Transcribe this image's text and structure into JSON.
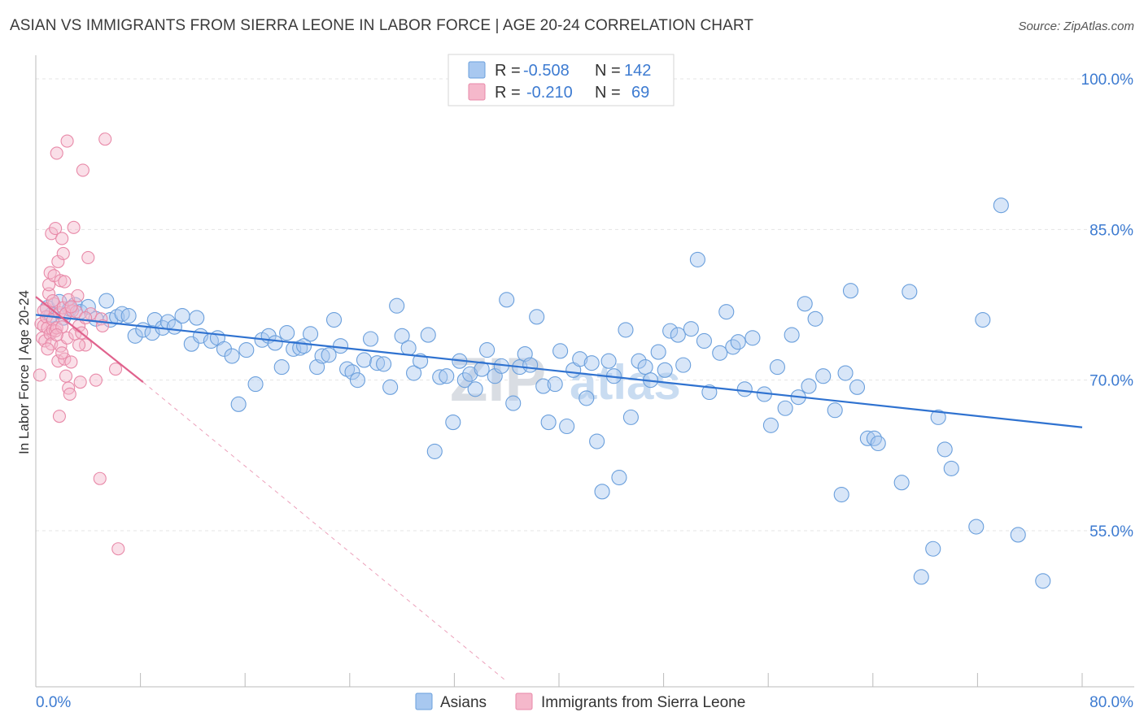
{
  "title": "ASIAN VS IMMIGRANTS FROM SIERRA LEONE IN LABOR FORCE | AGE 20-24 CORRELATION CHART",
  "source": "Source: ZipAtlas.com",
  "watermark": {
    "zip": "ZIP",
    "atlas": "atlas"
  },
  "legend_box": {
    "rows": [
      {
        "r_label": "R =",
        "r_value": "-0.508",
        "n_label": "N =",
        "n_value": "142",
        "color": "#a8c8f0"
      },
      {
        "r_label": "R =",
        "r_value": "-0.210",
        "n_label": "N =",
        "n_value": "69",
        "color": "#f5b8cb"
      }
    ]
  },
  "bottom_legend": [
    {
      "label": "Asians",
      "color": "#a8c8f0"
    },
    {
      "label": "Immigrants from Sierra Leone",
      "color": "#f5b8cb"
    }
  ],
  "chart_data": {
    "type": "scatter",
    "ylabel": "In Labor Force | Age 20-24",
    "xlabel": "",
    "xlim": [
      0,
      84
    ],
    "ylim": [
      40,
      102
    ],
    "x_tick_labels": [
      {
        "value": 0,
        "label": "0.0%"
      },
      {
        "value": 80,
        "label": "80.0%"
      }
    ],
    "y_tick_labels": [
      {
        "value": 100,
        "label": "100.0%"
      },
      {
        "value": 85,
        "label": "85.0%"
      },
      {
        "value": 70,
        "label": "70.0%"
      },
      {
        "value": 55,
        "label": "55.0%"
      }
    ],
    "grid": true,
    "series": [
      {
        "name": "Asians",
        "color": "#a8c8f0",
        "stroke": "#6a9fdc",
        "trend": {
          "x": [
            0,
            80
          ],
          "y": [
            76.5,
            65.3
          ],
          "color": "#2f72d0"
        },
        "points": [
          [
            0.9,
            77.2
          ],
          [
            1.2,
            76.5
          ],
          [
            1.8,
            77.8
          ],
          [
            2.1,
            76.2
          ],
          [
            2.6,
            77.1
          ],
          [
            3.0,
            77.5
          ],
          [
            3.4,
            76.8
          ],
          [
            4.0,
            77.3
          ],
          [
            4.6,
            76.1
          ],
          [
            5.4,
            77.9
          ],
          [
            5.7,
            76.0
          ],
          [
            6.2,
            76.3
          ],
          [
            6.6,
            76.6
          ],
          [
            7.1,
            76.4
          ],
          [
            7.6,
            74.4
          ],
          [
            8.2,
            75.0
          ],
          [
            8.9,
            74.7
          ],
          [
            9.1,
            76.0
          ],
          [
            9.7,
            75.2
          ],
          [
            10.1,
            75.8
          ],
          [
            10.6,
            75.3
          ],
          [
            11.2,
            76.4
          ],
          [
            11.9,
            73.6
          ],
          [
            12.3,
            76.2
          ],
          [
            12.6,
            74.4
          ],
          [
            13.4,
            73.9
          ],
          [
            13.9,
            74.2
          ],
          [
            14.4,
            73.1
          ],
          [
            15.0,
            72.4
          ],
          [
            15.5,
            67.6
          ],
          [
            16.1,
            73.0
          ],
          [
            16.8,
            69.6
          ],
          [
            17.3,
            74.0
          ],
          [
            17.8,
            74.4
          ],
          [
            18.3,
            73.7
          ],
          [
            18.8,
            71.3
          ],
          [
            19.2,
            74.7
          ],
          [
            19.7,
            73.1
          ],
          [
            20.2,
            73.2
          ],
          [
            20.5,
            73.4
          ],
          [
            21.0,
            74.6
          ],
          [
            21.5,
            71.3
          ],
          [
            21.9,
            72.4
          ],
          [
            22.4,
            72.5
          ],
          [
            22.8,
            76.0
          ],
          [
            23.3,
            73.4
          ],
          [
            23.8,
            71.1
          ],
          [
            24.2,
            70.8
          ],
          [
            24.6,
            70.0
          ],
          [
            25.1,
            72.0
          ],
          [
            25.6,
            74.1
          ],
          [
            26.1,
            71.7
          ],
          [
            26.6,
            71.6
          ],
          [
            27.1,
            69.3
          ],
          [
            27.6,
            77.4
          ],
          [
            28.0,
            74.4
          ],
          [
            28.5,
            73.2
          ],
          [
            28.9,
            70.7
          ],
          [
            29.4,
            71.9
          ],
          [
            30.0,
            74.5
          ],
          [
            30.5,
            62.9
          ],
          [
            30.9,
            70.3
          ],
          [
            31.4,
            70.4
          ],
          [
            31.9,
            65.8
          ],
          [
            32.4,
            71.9
          ],
          [
            32.8,
            70.0
          ],
          [
            33.2,
            70.6
          ],
          [
            33.6,
            69.1
          ],
          [
            34.1,
            71.1
          ],
          [
            34.5,
            73.0
          ],
          [
            35.1,
            70.4
          ],
          [
            35.6,
            71.4
          ],
          [
            36.0,
            78.0
          ],
          [
            36.5,
            67.7
          ],
          [
            37.0,
            71.3
          ],
          [
            37.4,
            72.6
          ],
          [
            37.8,
            71.5
          ],
          [
            38.3,
            76.3
          ],
          [
            38.8,
            69.4
          ],
          [
            39.2,
            65.8
          ],
          [
            39.7,
            69.6
          ],
          [
            40.1,
            72.9
          ],
          [
            40.6,
            65.4
          ],
          [
            41.1,
            71.0
          ],
          [
            41.6,
            72.1
          ],
          [
            42.1,
            68.2
          ],
          [
            42.5,
            71.7
          ],
          [
            42.9,
            63.9
          ],
          [
            43.3,
            58.9
          ],
          [
            43.8,
            71.9
          ],
          [
            44.2,
            70.4
          ],
          [
            44.6,
            60.3
          ],
          [
            45.1,
            75.0
          ],
          [
            45.5,
            66.3
          ],
          [
            46.1,
            71.9
          ],
          [
            46.6,
            71.3
          ],
          [
            47.0,
            70.0
          ],
          [
            47.6,
            72.8
          ],
          [
            48.1,
            71.0
          ],
          [
            48.5,
            74.9
          ],
          [
            49.1,
            74.5
          ],
          [
            49.5,
            71.5
          ],
          [
            50.1,
            75.1
          ],
          [
            50.6,
            82.0
          ],
          [
            51.1,
            73.9
          ],
          [
            51.5,
            68.8
          ],
          [
            52.3,
            72.7
          ],
          [
            52.8,
            76.8
          ],
          [
            53.3,
            73.3
          ],
          [
            53.7,
            73.8
          ],
          [
            54.2,
            69.1
          ],
          [
            54.8,
            74.2
          ],
          [
            55.7,
            68.6
          ],
          [
            56.2,
            65.5
          ],
          [
            56.7,
            71.3
          ],
          [
            57.3,
            67.2
          ],
          [
            57.8,
            74.5
          ],
          [
            58.3,
            68.3
          ],
          [
            58.8,
            77.6
          ],
          [
            59.1,
            69.4
          ],
          [
            59.6,
            76.1
          ],
          [
            60.2,
            70.4
          ],
          [
            61.1,
            67.0
          ],
          [
            61.6,
            58.6
          ],
          [
            61.9,
            70.7
          ],
          [
            62.3,
            78.9
          ],
          [
            62.8,
            69.3
          ],
          [
            63.6,
            64.2
          ],
          [
            64.1,
            64.2
          ],
          [
            64.4,
            63.7
          ],
          [
            66.2,
            59.8
          ],
          [
            66.8,
            78.8
          ],
          [
            67.7,
            50.4
          ],
          [
            68.6,
            53.2
          ],
          [
            69.0,
            66.3
          ],
          [
            69.5,
            63.1
          ],
          [
            70.0,
            61.2
          ],
          [
            71.9,
            55.4
          ],
          [
            72.4,
            76.0
          ],
          [
            73.8,
            87.4
          ],
          [
            75.1,
            54.6
          ],
          [
            77.0,
            50.0
          ]
        ]
      },
      {
        "name": "Immigrants from Sierra Leone",
        "color": "#f5b8cb",
        "stroke": "#e889a8",
        "trend": {
          "x": [
            0,
            8.2
          ],
          "y": [
            78.3,
            69.8
          ],
          "color": "#e0628d",
          "extend_to_x": 36.0,
          "extend_to_y": 40.0
        },
        "points": [
          [
            0.3,
            70.5
          ],
          [
            0.4,
            75.6
          ],
          [
            0.5,
            74.2
          ],
          [
            0.6,
            75.4
          ],
          [
            0.7,
            73.9
          ],
          [
            0.8,
            77.1
          ],
          [
            0.8,
            76.3
          ],
          [
            0.9,
            75.2
          ],
          [
            1.0,
            78.6
          ],
          [
            1.0,
            79.5
          ],
          [
            1.1,
            80.7
          ],
          [
            1.1,
            74.6
          ],
          [
            1.2,
            84.6
          ],
          [
            1.2,
            73.6
          ],
          [
            1.3,
            76.0
          ],
          [
            1.3,
            75.0
          ],
          [
            1.4,
            77.6
          ],
          [
            1.4,
            80.4
          ],
          [
            1.5,
            85.1
          ],
          [
            1.5,
            74.9
          ],
          [
            1.6,
            75.2
          ],
          [
            1.6,
            92.6
          ],
          [
            1.7,
            81.8
          ],
          [
            1.7,
            71.9
          ],
          [
            1.8,
            66.4
          ],
          [
            1.8,
            76.7
          ],
          [
            1.9,
            79.9
          ],
          [
            1.9,
            73.4
          ],
          [
            2.0,
            84.1
          ],
          [
            2.0,
            75.3
          ],
          [
            2.1,
            77.2
          ],
          [
            2.1,
            82.6
          ],
          [
            2.2,
            79.8
          ],
          [
            2.2,
            72.1
          ],
          [
            2.3,
            70.4
          ],
          [
            2.3,
            76.6
          ],
          [
            2.4,
            74.2
          ],
          [
            2.4,
            93.8
          ],
          [
            2.5,
            78.0
          ],
          [
            2.5,
            69.2
          ],
          [
            2.6,
            68.6
          ],
          [
            2.7,
            71.8
          ],
          [
            2.8,
            76.9
          ],
          [
            2.9,
            85.2
          ],
          [
            3.0,
            74.6
          ],
          [
            3.1,
            76.8
          ],
          [
            3.2,
            78.4
          ],
          [
            3.3,
            75.4
          ],
          [
            3.4,
            69.8
          ],
          [
            3.5,
            74.7
          ],
          [
            3.6,
            90.9
          ],
          [
            3.8,
            73.5
          ],
          [
            4.0,
            82.2
          ],
          [
            4.2,
            76.6
          ],
          [
            4.6,
            70.0
          ],
          [
            4.9,
            60.2
          ],
          [
            5.0,
            76.1
          ],
          [
            5.1,
            75.4
          ],
          [
            5.3,
            94.0
          ],
          [
            6.1,
            71.1
          ],
          [
            6.3,
            53.2
          ],
          [
            0.6,
            76.9
          ],
          [
            0.9,
            73.1
          ],
          [
            1.3,
            77.9
          ],
          [
            1.6,
            74.5
          ],
          [
            2.0,
            72.7
          ],
          [
            2.7,
            77.3
          ],
          [
            3.3,
            73.5
          ],
          [
            3.8,
            76.2
          ]
        ]
      }
    ]
  }
}
